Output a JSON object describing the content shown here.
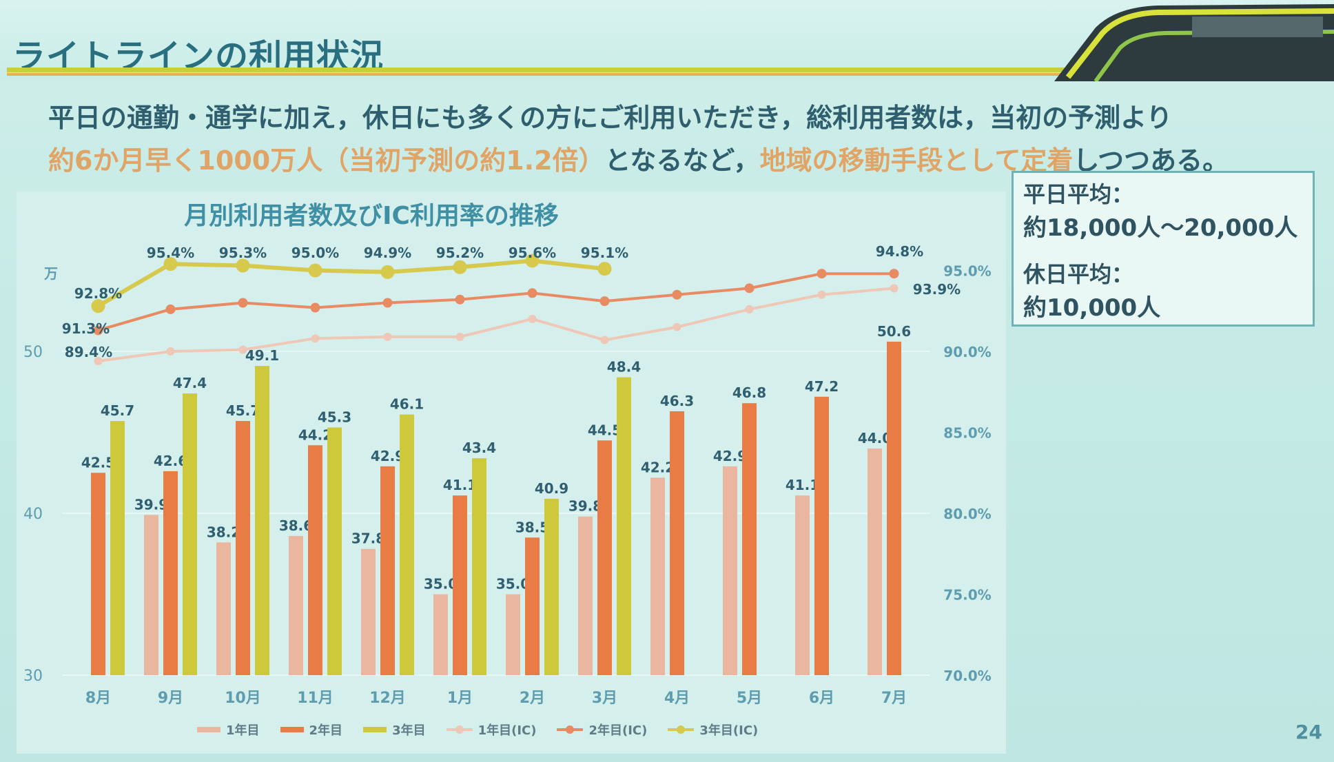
{
  "slide": {
    "title": "ライトラインの利用状況",
    "lead_line1": "平日の通勤・通学に加え，休日にも多くの方にご利用いただき，総利用者数は，当初の予測より",
    "lead_hl1": "約6か月早く1000万人（当初予測の約1.2倍）",
    "lead_mid": "となるなど，",
    "lead_hl2": "地域の移動手段として定着",
    "lead_end": "しつつある。",
    "page_number": "24"
  },
  "info": {
    "weekday_label": "平日平均：",
    "weekday_value": "約18,000人～20,000人",
    "holiday_label": "休日平均：",
    "holiday_value": "約10,000人"
  },
  "colors": {
    "year1": "#eab6a0",
    "year2": "#e97b45",
    "year3": "#cdc93a",
    "year1_ic": "#efc7b6",
    "year2_ic": "#e88a62",
    "year3_ic": "#d7c94c",
    "value_label": "#2f5f70",
    "axis_text": "#5e9caf"
  },
  "chart_data": {
    "type": "bar",
    "title": "月別利用者数及びIC利用率の推移",
    "categories": [
      "8月",
      "9月",
      "10月",
      "11月",
      "12月",
      "1月",
      "2月",
      "3月",
      "4月",
      "5月",
      "6月",
      "7月"
    ],
    "y_unit": "万",
    "y_ticks": [
      "30",
      "40",
      "50"
    ],
    "ylim": [
      30,
      54
    ],
    "y2_ticks": [
      "70.0%",
      "75.0%",
      "80.0%",
      "85.0%",
      "90.0%",
      "95.0%"
    ],
    "y2lim": [
      70,
      96
    ],
    "series": [
      {
        "name": "1年目",
        "kind": "bar",
        "values": [
          null,
          39.9,
          38.2,
          38.6,
          37.8,
          35.0,
          35.0,
          39.8,
          42.2,
          42.9,
          41.1,
          44.0
        ],
        "labels": [
          "",
          "39.9",
          "38.2",
          "38.6",
          "37.8",
          "35.0",
          "35.0",
          "39.8",
          "42.2",
          "42.9",
          "41.1",
          "44.0"
        ]
      },
      {
        "name": "2年目",
        "kind": "bar",
        "values": [
          42.5,
          42.6,
          45.7,
          44.2,
          42.9,
          41.1,
          38.5,
          44.5,
          46.3,
          46.8,
          47.2,
          50.6
        ],
        "labels": [
          "42.5",
          "42.6",
          "45.7",
          "44.2",
          "42.9",
          "41.1",
          "38.5",
          "44.5",
          "46.3",
          "46.8",
          "47.2",
          "50.6"
        ]
      },
      {
        "name": "3年目",
        "kind": "bar",
        "values": [
          45.7,
          47.4,
          49.1,
          45.3,
          46.1,
          43.4,
          40.9,
          48.4,
          null,
          null,
          null,
          null
        ],
        "labels": [
          "45.7",
          "47.4",
          "49.1",
          "45.3",
          "46.1",
          "43.4",
          "40.9",
          "48.4",
          "",
          "",
          "",
          ""
        ]
      },
      {
        "name": "1年目(IC)",
        "kind": "line",
        "values": [
          89.4,
          90.0,
          90.1,
          90.8,
          90.9,
          90.9,
          92.0,
          90.7,
          91.5,
          92.6,
          93.5,
          93.9
        ],
        "labels": [
          "89.4%",
          "",
          "",
          "",
          "",
          "",
          "",
          "",
          "",
          "",
          "",
          "93.9%"
        ]
      },
      {
        "name": "2年目(IC)",
        "kind": "line",
        "values": [
          91.3,
          92.6,
          93.0,
          92.7,
          93.0,
          93.2,
          93.6,
          93.1,
          93.5,
          93.9,
          94.8,
          94.8
        ],
        "labels": [
          "91.3%",
          "",
          "",
          "",
          "",
          "",
          "",
          "",
          "",
          "",
          "",
          "94.8%"
        ]
      },
      {
        "name": "3年目(IC)",
        "kind": "line",
        "values": [
          92.8,
          95.4,
          95.3,
          95.0,
          94.9,
          95.2,
          95.6,
          95.1,
          null,
          null,
          null,
          null
        ],
        "labels": [
          "92.8%",
          "95.4%",
          "95.3%",
          "95.0%",
          "94.9%",
          "95.2%",
          "95.6%",
          "95.1%",
          "",
          "",
          "",
          ""
        ]
      }
    ],
    "legend": [
      "1年目",
      "2年目",
      "3年目",
      "1年目(IC)",
      "2年目(IC)",
      "3年目(IC)"
    ],
    "legend_position": "bottom"
  }
}
